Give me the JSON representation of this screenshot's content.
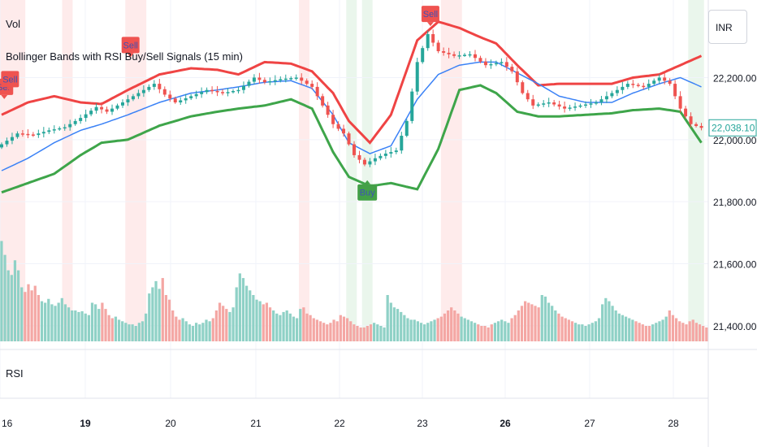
{
  "header": {
    "volume_label": "Vol",
    "indicator_title": "Bollinger Bands with RSI Buy/Sell Signals (15 min)",
    "currency": "INR"
  },
  "rsi_pane": {
    "label": "RSI"
  },
  "colors": {
    "upper_band": "#ef4444",
    "middle_band": "#3b82f6",
    "lower_band": "#3ea54a",
    "candle_up": "#26a69a",
    "candle_down": "#ef5350",
    "vol_up": "#8fd1c6",
    "vol_down": "#f4a7a4",
    "sell_zone": "#fde4e4",
    "buy_zone": "#e5f4e7",
    "sell_badge": "#ef5350",
    "buy_badge": "#43a047",
    "price_tag": "#26a69a"
  },
  "chart_data": {
    "type": "candlestick",
    "ylim": [
      21350,
      22450
    ],
    "y_ticks": [
      "22,200.00",
      "22,000.00",
      "21,800.00",
      "21,600.00",
      "21,400.00"
    ],
    "y_tick_values": [
      22200,
      22000,
      21800,
      21600,
      21400
    ],
    "x_ticks": [
      "16",
      "19",
      "20",
      "21",
      "22",
      "23",
      "26",
      "27",
      "28"
    ],
    "x_tick_bold": [
      false,
      true,
      false,
      false,
      false,
      false,
      true,
      false,
      false
    ],
    "last_price": "22,038.10",
    "last_price_value": 22038.1,
    "bollinger": {
      "upper": [
        [
          0,
          22080
        ],
        [
          5,
          22120
        ],
        [
          10,
          22140
        ],
        [
          15,
          22120
        ],
        [
          19,
          22115
        ],
        [
          24,
          22160
        ],
        [
          30,
          22210
        ],
        [
          36,
          22230
        ],
        [
          41,
          22225
        ],
        [
          45,
          22210
        ],
        [
          50,
          22250
        ],
        [
          55,
          22245
        ],
        [
          59,
          22220
        ],
        [
          63,
          22150
        ],
        [
          66,
          22060
        ],
        [
          70,
          21990
        ],
        [
          74,
          22080
        ],
        [
          79,
          22320
        ],
        [
          83,
          22380
        ],
        [
          87,
          22360
        ],
        [
          91,
          22330
        ],
        [
          94,
          22310
        ],
        [
          98,
          22240
        ],
        [
          102,
          22175
        ],
        [
          106,
          22180
        ],
        [
          111,
          22180
        ],
        [
          116,
          22180
        ],
        [
          120,
          22200
        ],
        [
          125,
          22210
        ],
        [
          129,
          22240
        ],
        [
          133,
          22270
        ]
      ],
      "middle": [
        [
          0,
          21900
        ],
        [
          5,
          21940
        ],
        [
          10,
          21990
        ],
        [
          15,
          22030
        ],
        [
          19,
          22050
        ],
        [
          24,
          22080
        ],
        [
          30,
          22120
        ],
        [
          36,
          22150
        ],
        [
          41,
          22160
        ],
        [
          45,
          22170
        ],
        [
          50,
          22185
        ],
        [
          55,
          22190
        ],
        [
          59,
          22165
        ],
        [
          63,
          22080
        ],
        [
          66,
          21990
        ],
        [
          70,
          21955
        ],
        [
          74,
          21980
        ],
        [
          79,
          22130
        ],
        [
          83,
          22210
        ],
        [
          87,
          22240
        ],
        [
          91,
          22250
        ],
        [
          94,
          22250
        ],
        [
          98,
          22215
        ],
        [
          102,
          22180
        ],
        [
          106,
          22140
        ],
        [
          111,
          22120
        ],
        [
          116,
          22120
        ],
        [
          120,
          22150
        ],
        [
          125,
          22180
        ],
        [
          129,
          22200
        ],
        [
          133,
          22170
        ]
      ],
      "lower": [
        [
          0,
          21830
        ],
        [
          5,
          21860
        ],
        [
          10,
          21890
        ],
        [
          15,
          21950
        ],
        [
          19,
          21990
        ],
        [
          24,
          22000
        ],
        [
          30,
          22045
        ],
        [
          36,
          22075
        ],
        [
          41,
          22090
        ],
        [
          45,
          22100
        ],
        [
          50,
          22110
        ],
        [
          55,
          22130
        ],
        [
          59,
          22100
        ],
        [
          63,
          21960
        ],
        [
          66,
          21880
        ],
        [
          70,
          21850
        ],
        [
          74,
          21860
        ],
        [
          79,
          21840
        ],
        [
          83,
          21970
        ],
        [
          87,
          22160
        ],
        [
          91,
          22175
        ],
        [
          94,
          22150
        ],
        [
          98,
          22090
        ],
        [
          102,
          22075
        ],
        [
          106,
          22075
        ],
        [
          111,
          22080
        ],
        [
          116,
          22085
        ],
        [
          120,
          22095
        ],
        [
          125,
          22100
        ],
        [
          129,
          22090
        ],
        [
          133,
          21990
        ]
      ]
    },
    "close": [
      [
        0,
        21985
      ],
      [
        3,
        22020
      ],
      [
        6,
        22015
      ],
      [
        9,
        22030
      ],
      [
        12,
        22040
      ],
      [
        15,
        22070
      ],
      [
        18,
        22105
      ],
      [
        20,
        22090
      ],
      [
        23,
        22120
      ],
      [
        26,
        22150
      ],
      [
        29,
        22180
      ],
      [
        31,
        22145
      ],
      [
        33,
        22120
      ],
      [
        36,
        22140
      ],
      [
        39,
        22160
      ],
      [
        42,
        22150
      ],
      [
        45,
        22160
      ],
      [
        48,
        22200
      ],
      [
        50,
        22185
      ],
      [
        53,
        22195
      ],
      [
        56,
        22200
      ],
      [
        59,
        22170
      ],
      [
        61,
        22110
      ],
      [
        63,
        22050
      ],
      [
        65,
        22020
      ],
      [
        67,
        21950
      ],
      [
        69,
        21920
      ],
      [
        71,
        21940
      ],
      [
        73,
        21955
      ],
      [
        75,
        21965
      ],
      [
        77,
        22060
      ],
      [
        79,
        22250
      ],
      [
        81,
        22340
      ],
      [
        83,
        22285
      ],
      [
        86,
        22270
      ],
      [
        89,
        22275
      ],
      [
        92,
        22240
      ],
      [
        95,
        22250
      ],
      [
        97,
        22220
      ],
      [
        99,
        22150
      ],
      [
        101,
        22110
      ],
      [
        104,
        22120
      ],
      [
        107,
        22100
      ],
      [
        110,
        22110
      ],
      [
        113,
        22120
      ],
      [
        116,
        22150
      ],
      [
        119,
        22180
      ],
      [
        122,
        22170
      ],
      [
        125,
        22200
      ],
      [
        127,
        22180
      ],
      [
        129,
        22100
      ],
      [
        131,
        22050
      ],
      [
        133,
        22038
      ]
    ],
    "volume": [
      130,
      112,
      92,
      86,
      105,
      92,
      70,
      64,
      74,
      66,
      72,
      60,
      52,
      50,
      55,
      48,
      46,
      50,
      56,
      48,
      44,
      40,
      40,
      38,
      39,
      36,
      34,
      50,
      48,
      42,
      50,
      42,
      34,
      30,
      32,
      28,
      26,
      24,
      22,
      22,
      20,
      24,
      26,
      36,
      62,
      70,
      78,
      68,
      82,
      60,
      54,
      40,
      32,
      28,
      30,
      26,
      22,
      20,
      24,
      22,
      24,
      28,
      26,
      30,
      40,
      50,
      46,
      42,
      38,
      44,
      70,
      88,
      82,
      72,
      66,
      60,
      54,
      52,
      48,
      50,
      44,
      40,
      36,
      34,
      38,
      40,
      36,
      32,
      30,
      42,
      44,
      36,
      34,
      30,
      28,
      26,
      24,
      22,
      24,
      28,
      26,
      34,
      32,
      30,
      26,
      22,
      20,
      18,
      18,
      20,
      22,
      24,
      22,
      20,
      18,
      60,
      50,
      44,
      42,
      38,
      34,
      30,
      28,
      28,
      26,
      24,
      22,
      24,
      26,
      28,
      30,
      32,
      36,
      40,
      44,
      40,
      36,
      32,
      30,
      28,
      26,
      24,
      22,
      20,
      20,
      18,
      22,
      24,
      26,
      28,
      26,
      24,
      30,
      34,
      40,
      46,
      52,
      50,
      48,
      46,
      44,
      60,
      58,
      50,
      46,
      40,
      36,
      32,
      30,
      28,
      26,
      24,
      22,
      22,
      20,
      22,
      24,
      26,
      30,
      48,
      56,
      52,
      46,
      40,
      36,
      34,
      32,
      30,
      28,
      26,
      24,
      22,
      20,
      20,
      22,
      24,
      26,
      28,
      32,
      40,
      34,
      30,
      26,
      24,
      22,
      26,
      28,
      24,
      22,
      20,
      18
    ],
    "sell_zones": [
      [
        0,
        4
      ],
      [
        12,
        13
      ],
      [
        24,
        27
      ],
      [
        57,
        58
      ],
      [
        84,
        87
      ]
    ],
    "buy_zones": [
      [
        66,
        67
      ],
      [
        69,
        70
      ],
      [
        131,
        133
      ]
    ],
    "signals": [
      {
        "label": "Sell",
        "type": "sell",
        "x": 0.5,
        "y": 22170
      },
      {
        "label": "Sell",
        "type": "sell",
        "x": 1.6,
        "y": 22195
      },
      {
        "label": "Sell",
        "type": "sell",
        "x": 24.5,
        "y": 22305
      },
      {
        "label": "Buy",
        "type": "buy",
        "x": 69.5,
        "y": 21830
      },
      {
        "label": "Sell",
        "type": "sell",
        "x": 81.5,
        "y": 22405
      }
    ]
  }
}
